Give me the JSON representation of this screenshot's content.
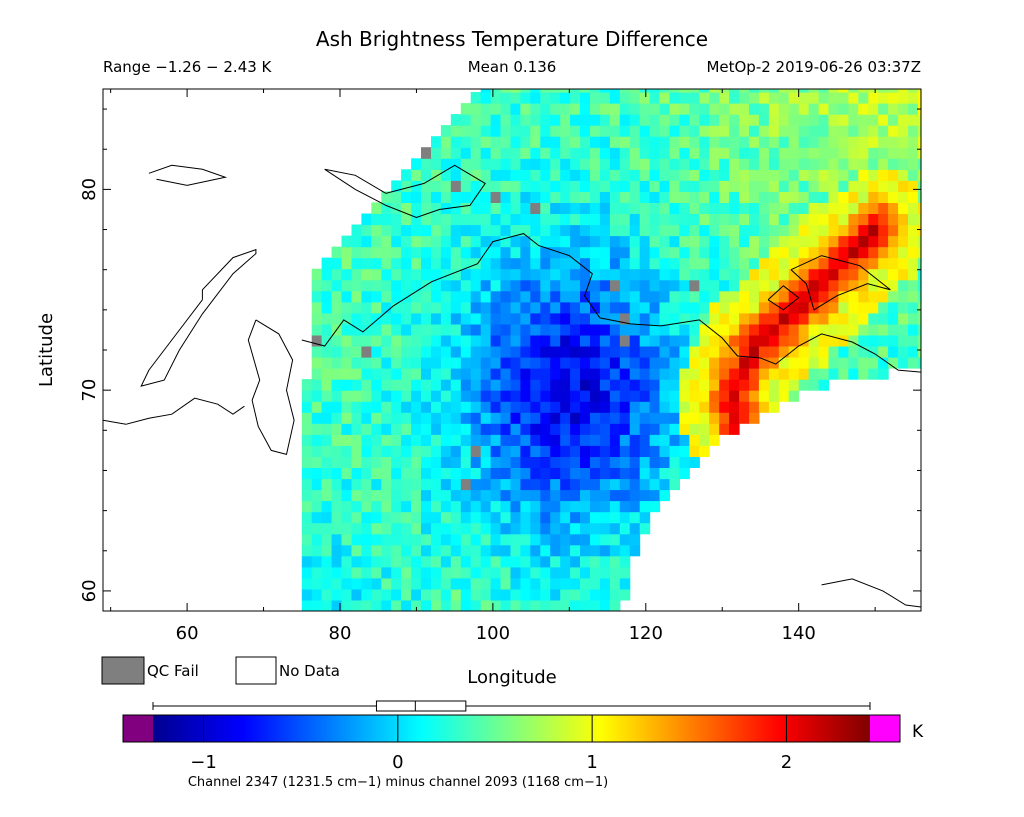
{
  "chart_data": {
    "type": "heatmap",
    "title": "Ash Brightness Temperature Difference",
    "range_text": "Range −1.26 − 2.43 K",
    "mean_text": "Mean 0.136",
    "source_text": "MetOp-2 2019-06-26 03:37Z",
    "xlabel": "Longitude",
    "ylabel": "Latitude",
    "xlim": [
      49,
      156
    ],
    "ylim": [
      59,
      85
    ],
    "x_ticks": [
      60,
      80,
      100,
      120,
      140
    ],
    "y_ticks": [
      60,
      70,
      80
    ],
    "legend": {
      "qc_fail_label": "QC Fail",
      "no_data_label": "No Data",
      "qc_fail_color": "#7f7f7f",
      "no_data_color": "#ffffff"
    },
    "colorbar": {
      "unit": "K",
      "ticks": [
        -1,
        0,
        1,
        2
      ],
      "tick_labels": [
        "−1",
        "0",
        "1",
        "2"
      ],
      "range": [
        -1.26,
        2.43
      ],
      "min_label_color": "#800080",
      "max_label_color": "#ff00ff",
      "colormap": "jet",
      "caption": "Channel 2347 (1231.5 cm−1) minus channel 2093 (1168 cm−1)"
    },
    "boxplot": {
      "min": -1.26,
      "q1": -0.11,
      "median": 0.09,
      "q3": 0.35,
      "max": 2.43
    },
    "plume": {
      "description_values": "Elevated BTD (about 1.5–2.4 K) along a narrow band near the Laptev coast",
      "points": [
        [
          150,
          78
        ],
        [
          146,
          76.5
        ],
        [
          142,
          75
        ],
        [
          138,
          73.5
        ],
        [
          134,
          72
        ],
        [
          132,
          70.5
        ],
        [
          131.5,
          69.5
        ],
        [
          132,
          68.5
        ],
        [
          133,
          67.5
        ]
      ]
    },
    "low_region": {
      "center": [
        110,
        70
      ],
      "value": -1.0
    }
  }
}
